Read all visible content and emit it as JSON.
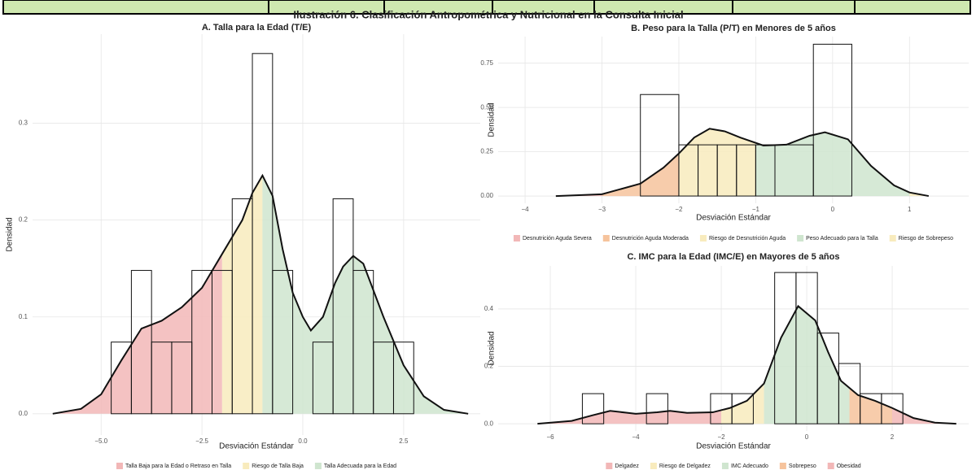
{
  "title": "Ilustración 6. Clasificación Antropométrica y Nutricional en la Consulta Inicial",
  "chart_data": [
    {
      "type": "histogram",
      "title": "A. Talla para la Edad (T/E)",
      "x_label": "Desviación Estándar",
      "y_label": "Densidad",
      "bins": [
        -4.75,
        -4.25,
        -3.75,
        -3.25,
        -2.75,
        -2.25,
        -1.75,
        -1.25,
        -0.75,
        -0.25,
        0.25,
        0.75,
        1.25,
        1.75,
        2.25,
        2.75
      ],
      "values": [
        0.074,
        0.148,
        0.074,
        0.074,
        0.148,
        0.148,
        0.222,
        0.372,
        0.148,
        0,
        0.074,
        0.222,
        0.148,
        0.074,
        0.074
      ],
      "density_x": [
        -6.2,
        -5.5,
        -5.0,
        -4.5,
        -4.0,
        -3.5,
        -3.0,
        -2.5,
        -2.0,
        -1.5,
        -1.25,
        -1.0,
        -0.75,
        -0.5,
        -0.25,
        0.0,
        0.2,
        0.5,
        0.8,
        1.0,
        1.25,
        1.5,
        2.0,
        2.5,
        3.0,
        3.5,
        4.1
      ],
      "density_y": [
        0,
        0.005,
        0.02,
        0.055,
        0.088,
        0.096,
        0.11,
        0.13,
        0.165,
        0.2,
        0.228,
        0.246,
        0.225,
        0.17,
        0.125,
        0.1,
        0.086,
        0.1,
        0.135,
        0.152,
        0.163,
        0.155,
        0.1,
        0.05,
        0.018,
        0.004,
        0
      ],
      "breaks": [
        -2,
        -1
      ],
      "regions": [
        {
          "name": "Talla Baja para la Edad o Retraso en Talla",
          "color": "#f2b7b7"
        },
        {
          "name": "Riesgo de Talla Baja",
          "color": "#f8ebbd"
        },
        {
          "name": "Talla Adecuada para la Edad",
          "color": "#cfe5cf"
        }
      ],
      "xlim": [
        -6.7,
        4.4
      ],
      "ylim": [
        -0.022,
        0.392
      ],
      "xticks": [
        {
          "value": -5,
          "label": "−5.0"
        },
        {
          "value": -2.5,
          "label": "−2.5"
        },
        {
          "value": 0,
          "label": "0.0"
        },
        2.5
      ],
      "yticks": [
        {
          "value": 0,
          "label": "0.0"
        },
        0.1,
        0.2,
        0.3
      ],
      "grid": true,
      "legend": "bottom"
    },
    {
      "type": "histogram",
      "title": "B. Peso para la Talla (P/T) en Menores de 5 años",
      "x_label": "Desviación Estándar",
      "y_label": "Densidad",
      "bins": [
        -2.5,
        -2.0,
        -1.75,
        -1.5,
        -1.25,
        -1.0,
        -0.75,
        -0.25,
        0.25
      ],
      "values": [
        0.573,
        0.289,
        0.289,
        0.289,
        0.289,
        0.289,
        0.289,
        0.857
      ],
      "density_x": [
        -3.6,
        -3.0,
        -2.5,
        -2.2,
        -2.0,
        -1.8,
        -1.6,
        -1.4,
        -1.2,
        -0.9,
        -0.6,
        -0.3,
        -0.1,
        0.2,
        0.5,
        0.8,
        1.0,
        1.25
      ],
      "density_y": [
        0,
        0.01,
        0.07,
        0.16,
        0.24,
        0.33,
        0.38,
        0.365,
        0.33,
        0.285,
        0.29,
        0.34,
        0.36,
        0.32,
        0.17,
        0.06,
        0.02,
        0
      ],
      "breaks": [
        -3,
        -2,
        -1,
        1
      ],
      "regions": [
        {
          "name": "Desnutrición Aguda Severa",
          "color": "#f2b7b7"
        },
        {
          "name": "Desnutrición Aguda Moderada",
          "color": "#f6c39c"
        },
        {
          "name": "Riesgo de Desnutrición Aguda",
          "color": "#f8ebbd"
        },
        {
          "name": "Peso Adecuado para la Talla",
          "color": "#cfe5cf"
        },
        {
          "name": "Riesgo de Sobrepeso",
          "color": "#f8ebbd"
        }
      ],
      "xlim": [
        -4.35,
        1.77
      ],
      "ylim": [
        -0.041,
        0.9
      ],
      "xticks": [
        {
          "value": -4,
          "label": "−4"
        },
        {
          "value": -3,
          "label": "−3"
        },
        {
          "value": -2,
          "label": "−2"
        },
        {
          "value": -1,
          "label": "−1"
        },
        0,
        1
      ],
      "yticks": [
        {
          "value": 0,
          "label": "0.00"
        },
        0.25,
        {
          "value": 0.5,
          "label": "0.50"
        },
        0.75
      ],
      "grid": true,
      "legend": "bottom"
    },
    {
      "type": "histogram",
      "title": "C. IMC para la Edad (IMC/E) en Mayores de 5 años",
      "x_label": "Desviación Estándar",
      "y_label": "Densidad",
      "bins": [
        -5.25,
        -4.75,
        -4.25,
        -3.75,
        -3.25,
        -2.75,
        -2.25,
        -1.75,
        -1.25,
        -0.75,
        -0.25,
        0.25,
        0.75,
        1.25,
        1.75,
        2.25
      ],
      "values": [
        0.105,
        0,
        0,
        0.105,
        0,
        0,
        0.105,
        0.105,
        0,
        0.527,
        0.527,
        0.316,
        0.21,
        0.105,
        0.105
      ],
      "density_x": [
        -6.3,
        -5.5,
        -5.0,
        -4.6,
        -4.0,
        -3.5,
        -3.2,
        -2.8,
        -2.2,
        -1.8,
        -1.4,
        -1.0,
        -0.6,
        -0.2,
        0.2,
        0.5,
        0.8,
        1.2,
        1.6,
        2.0,
        2.5,
        3.0,
        3.5
      ],
      "density_y": [
        0,
        0.01,
        0.03,
        0.045,
        0.035,
        0.04,
        0.045,
        0.038,
        0.04,
        0.055,
        0.08,
        0.14,
        0.3,
        0.41,
        0.36,
        0.25,
        0.15,
        0.1,
        0.08,
        0.055,
        0.02,
        0.004,
        0
      ],
      "breaks": [
        -2,
        -1,
        1,
        2
      ],
      "regions": [
        {
          "name": "Delgadez",
          "color": "#f2b7b7"
        },
        {
          "name": "Riesgo de Delgadez",
          "color": "#f8ebbd"
        },
        {
          "name": "IMC Adecuado",
          "color": "#cfe5cf"
        },
        {
          "name": "Sobrepeso",
          "color": "#f6c39c"
        },
        {
          "name": "Obesidad",
          "color": "#f2b7b7"
        }
      ],
      "xlim": [
        -7.22,
        3.79
      ],
      "ylim": [
        -0.025,
        0.55
      ],
      "xticks": [
        {
          "value": -6,
          "label": "−6"
        },
        {
          "value": -4,
          "label": "−4"
        },
        {
          "value": -2,
          "label": "−2"
        },
        0,
        2
      ],
      "yticks": [
        {
          "value": 0,
          "label": "0.0"
        },
        0.2,
        0.4
      ],
      "grid": true,
      "legend": "bottom"
    }
  ]
}
